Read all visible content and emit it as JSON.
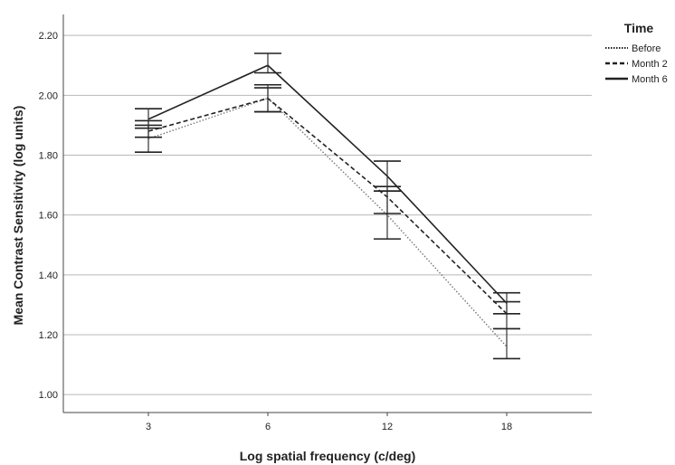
{
  "chart_data": {
    "type": "line",
    "title": "",
    "xlabel": "Log spatial frequency (c/deg)",
    "ylabel": "Mean Contrast Sensitivity (log units)",
    "categories": [
      "3",
      "6",
      "12",
      "18"
    ],
    "ylim": [
      0.94,
      2.27
    ],
    "yticks": [
      "1.00",
      "1.20",
      "1.40",
      "1.60",
      "1.80",
      "2.00",
      "2.20"
    ],
    "grid": "horizontal",
    "legend": {
      "title": "Time",
      "placement": "top-right"
    },
    "series": [
      {
        "name": "Before",
        "style": "dotted",
        "color": "#777777",
        "values": [
          1.855,
          1.99,
          1.6,
          1.16
        ],
        "err_low": [
          1.81,
          1.945,
          1.52,
          1.12
        ],
        "err_high": [
          1.9,
          2.035,
          1.68,
          1.22
        ]
      },
      {
        "name": "Month 2",
        "style": "dashed",
        "color": "#222222",
        "values": [
          1.88,
          1.99,
          1.66,
          1.27
        ],
        "err_low": [
          1.86,
          1.945,
          1.605,
          1.22
        ],
        "err_high": [
          1.915,
          2.025,
          1.695,
          1.31
        ]
      },
      {
        "name": "Month 6",
        "style": "solid",
        "color": "#222222",
        "values": [
          1.92,
          2.1,
          1.73,
          1.305
        ],
        "err_low": [
          1.89,
          2.075,
          1.68,
          1.27
        ],
        "err_high": [
          1.955,
          2.14,
          1.78,
          1.34
        ]
      }
    ]
  }
}
